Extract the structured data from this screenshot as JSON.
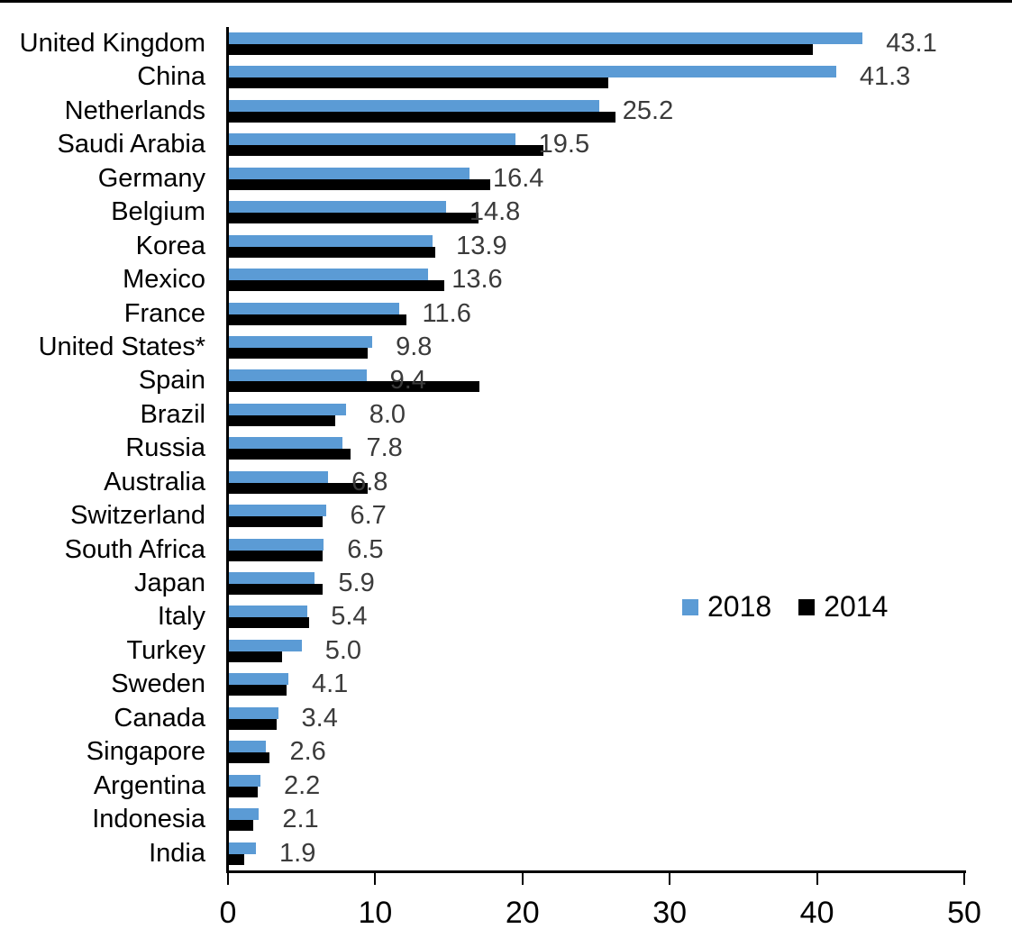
{
  "chart_data": {
    "type": "bar",
    "orientation": "horizontal",
    "title": "",
    "xlabel": "",
    "ylabel": "",
    "xlim": [
      0,
      50
    ],
    "x_ticks": [
      "0",
      "10",
      "20",
      "30",
      "40",
      "50"
    ],
    "grid": false,
    "legend_position": "middle-right",
    "categories": [
      "United Kingdom",
      "China",
      "Netherlands",
      "Saudi Arabia",
      "Germany",
      "Belgium",
      "Korea",
      "Mexico",
      "France",
      "United States*",
      "Spain",
      "Brazil",
      "Russia",
      "Australia",
      "Switzerland",
      "South Africa",
      "Japan",
      "Italy",
      "Turkey",
      "Sweden",
      "Canada",
      "Singapore",
      "Argentina",
      "Indonesia",
      "India"
    ],
    "series": [
      {
        "name": "2018",
        "color": "#5B9BD5",
        "values": [
          43.1,
          41.3,
          25.2,
          19.5,
          16.4,
          14.8,
          13.9,
          13.6,
          11.6,
          9.8,
          9.4,
          8.0,
          7.8,
          6.8,
          6.7,
          6.5,
          5.9,
          5.4,
          5.0,
          4.1,
          3.4,
          2.6,
          2.2,
          2.1,
          1.9
        ]
      },
      {
        "name": "2014",
        "color": "#000000",
        "values": [
          39.7,
          25.8,
          26.3,
          21.4,
          17.8,
          17.0,
          14.1,
          14.7,
          12.1,
          9.5,
          17.1,
          7.3,
          8.3,
          9.5,
          6.4,
          6.4,
          6.4,
          5.5,
          3.7,
          4.0,
          3.3,
          2.8,
          2.0,
          1.7,
          1.1
        ]
      }
    ],
    "data_labels": [
      "43.1",
      "41.3",
      "25.2",
      "19.5",
      "16.4",
      "14.8",
      "13.9",
      "13.6",
      "11.6",
      "9.8",
      "9.4",
      "8.0",
      "7.8",
      "6.8",
      "6.7",
      "6.5",
      "5.9",
      "5.4",
      "5.0",
      "4.1",
      "3.4",
      "2.6",
      "2.2",
      "2.1",
      "1.9"
    ]
  },
  "colors": {
    "bar_2018": "#5B9BD5",
    "bar_2014": "#000000",
    "value_label": "#3b3b3b",
    "axis": "#000000"
  }
}
